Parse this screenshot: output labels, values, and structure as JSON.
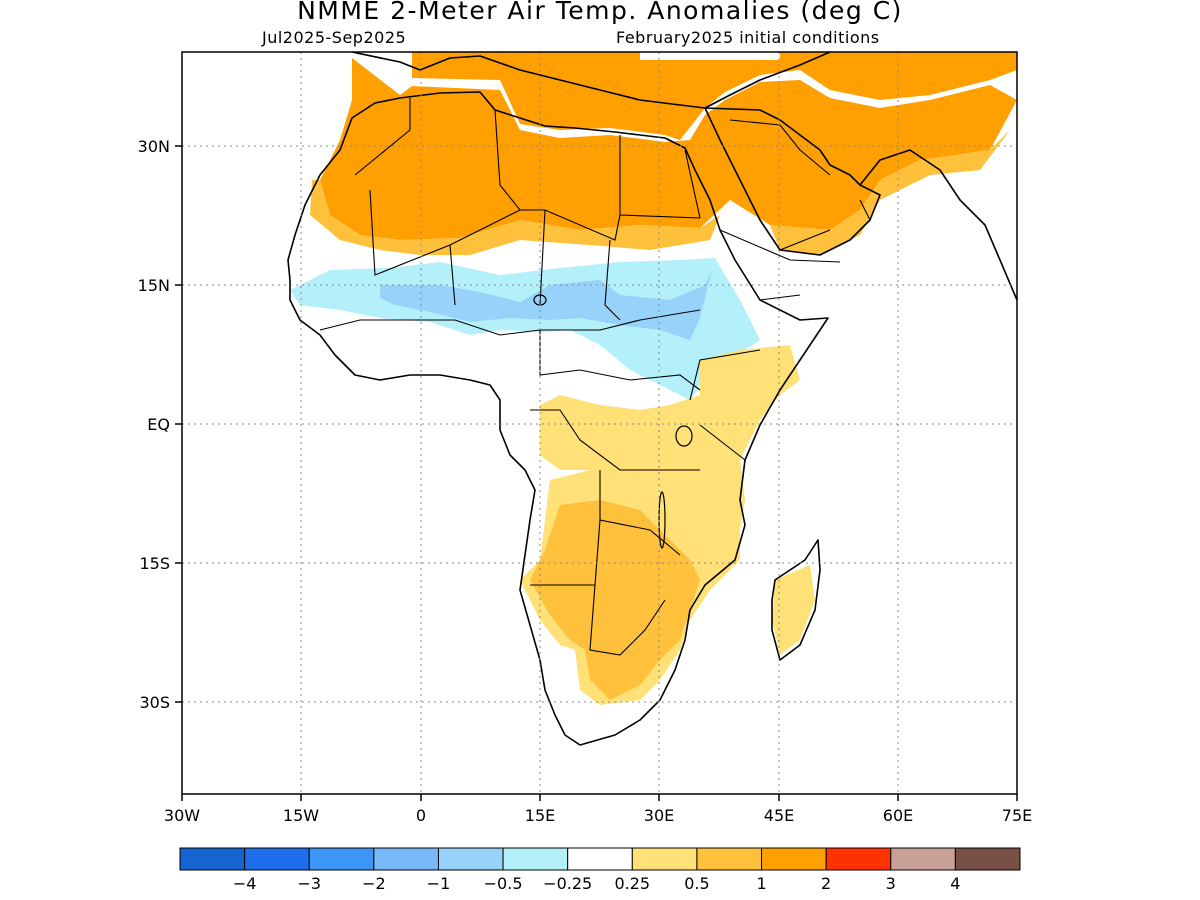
{
  "header": {
    "title": "NMME 2-Meter Air Temp. Anomalies (deg C)",
    "period": "Jul2025-Sep2025",
    "initial_conditions": "February2025 initial conditions"
  },
  "map": {
    "lat_ticks": [
      "30N",
      "15N",
      "EQ",
      "15S",
      "30S"
    ],
    "lon_ticks": [
      "30W",
      "15W",
      "0",
      "15E",
      "30E",
      "45E",
      "60E",
      "75E"
    ],
    "gridlines": true,
    "region": "Africa and Arabian Peninsula"
  },
  "colorbar": {
    "colors": [
      "#1464d2",
      "#1e6eeb",
      "#3c96f5",
      "#78b9fa",
      "#96d2fa",
      "#b4f0fa",
      "#ffffff",
      "#ffe178",
      "#ffc03c",
      "#ffa000",
      "#ff3200",
      "#c8a096",
      "#785046"
    ],
    "labels": [
      "−4",
      "−3",
      "−2",
      "−1",
      "−0.5",
      "−0.25",
      "0.25",
      "0.5",
      "1",
      "2",
      "3",
      "4"
    ]
  },
  "chart_data": {
    "type": "heatmap",
    "variable": "2-Meter Air Temperature Anomaly",
    "units": "deg C",
    "levels": [
      -4,
      -3,
      -2,
      -1,
      -0.5,
      -0.25,
      0.25,
      0.5,
      1,
      2,
      3,
      4
    ],
    "lon_range": [
      -30,
      75
    ],
    "lat_range": [
      -42,
      46
    ],
    "regions": [
      {
        "area": "Sahara / North Africa",
        "anomaly_range": [
          1,
          2
        ]
      },
      {
        "area": "Arabian Peninsula / Middle East",
        "anomaly_range": [
          1,
          2
        ]
      },
      {
        "area": "Sahel band",
        "anomaly_range": [
          -1,
          -0.25
        ]
      },
      {
        "area": "Southern Africa",
        "anomaly_range": [
          0.5,
          1
        ]
      },
      {
        "area": "East Africa",
        "anomaly_range": [
          0.25,
          0.5
        ]
      },
      {
        "area": "Madagascar",
        "anomaly_range": [
          0.25,
          0.5
        ]
      },
      {
        "area": "Central Africa",
        "anomaly_range": [
          -0.25,
          0.25
        ]
      }
    ]
  }
}
